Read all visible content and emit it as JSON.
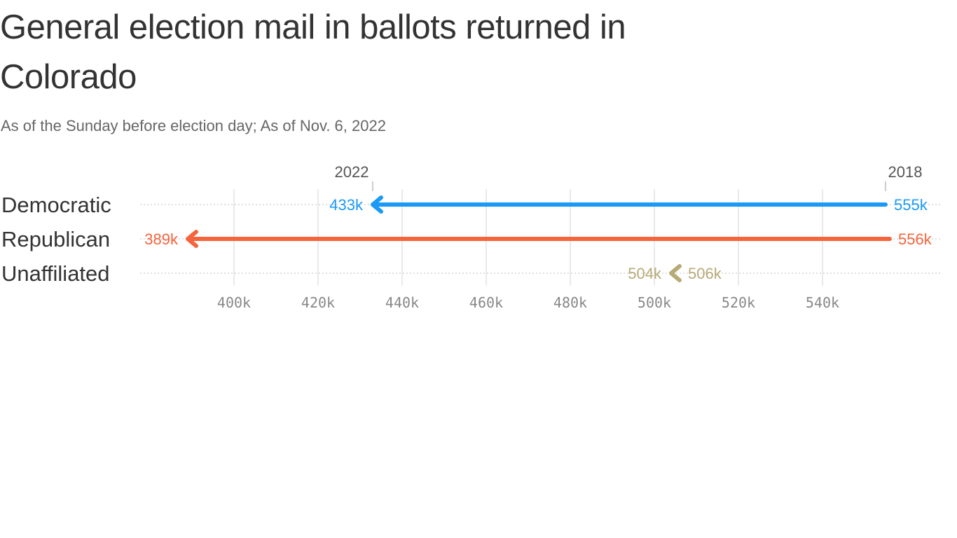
{
  "title": "General election mail in ballots returned in Colorado",
  "subtitle": "As of the Sunday before election day; As of Nov. 6, 2022",
  "chart_data": {
    "type": "arrow",
    "xlim": [
      380,
      560
    ],
    "x_ticks": [
      400,
      420,
      440,
      460,
      480,
      500,
      520,
      540
    ],
    "x_tick_labels": [
      "400k",
      "420k",
      "440k",
      "460k",
      "480k",
      "500k",
      "520k",
      "540k"
    ],
    "grid": true,
    "year_labels": {
      "start": "2018",
      "end": "2022"
    },
    "categories": [
      "Democratic",
      "Republican",
      "Unaffiliated"
    ],
    "series": [
      {
        "name": "2018",
        "values": [
          555,
          556,
          506
        ],
        "labels": [
          "555k",
          "556k",
          "506k"
        ]
      },
      {
        "name": "2022",
        "values": [
          433,
          389,
          504
        ],
        "labels": [
          "433k",
          "389k",
          "504k"
        ]
      }
    ],
    "colors": [
      "#1a9af5",
      "#f5643c",
      "#b6aa77"
    ]
  }
}
